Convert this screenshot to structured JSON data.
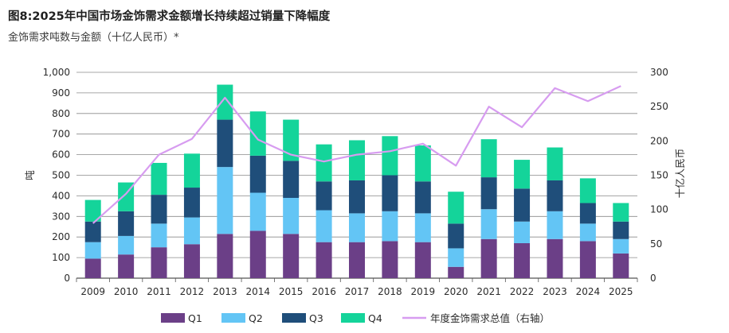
{
  "title": "图8:2025年中国市场金饰需求金额增长持续超过销量下降幅度",
  "subtitle": "金饰需求吨数与金额（十亿人民币）*",
  "chart_data": {
    "type": "bar",
    "stacked": true,
    "categories": [
      "2009",
      "2010",
      "2011",
      "2012",
      "2013",
      "2014",
      "2015",
      "2016",
      "2017",
      "2018",
      "2019",
      "2020",
      "2021",
      "2022",
      "2023",
      "2024",
      "2025"
    ],
    "series": [
      {
        "name": "Q1",
        "color": "#6b3f87",
        "values": [
          95,
          115,
          150,
          165,
          215,
          230,
          215,
          175,
          175,
          180,
          175,
          55,
          190,
          170,
          190,
          180,
          120
        ]
      },
      {
        "name": "Q2",
        "color": "#63c5f5",
        "values": [
          80,
          90,
          115,
          130,
          325,
          185,
          175,
          155,
          140,
          145,
          140,
          90,
          145,
          105,
          135,
          85,
          70
        ]
      },
      {
        "name": "Q3",
        "color": "#1f4e7a",
        "values": [
          100,
          120,
          140,
          145,
          230,
          180,
          180,
          140,
          160,
          175,
          155,
          120,
          155,
          160,
          150,
          100,
          85
        ]
      },
      {
        "name": "Q4",
        "color": "#14d49a",
        "values": [
          105,
          140,
          155,
          165,
          170,
          215,
          200,
          180,
          195,
          190,
          175,
          155,
          185,
          140,
          160,
          120,
          90
        ]
      }
    ],
    "line": {
      "name": "年度金饰需求总值（右轴）",
      "color": "#d79cf0",
      "axis": "right",
      "values": [
        80,
        123,
        180,
        203,
        263,
        202,
        180,
        170,
        180,
        185,
        196,
        164,
        250,
        220,
        277,
        258,
        280
      ]
    },
    "ylabel": "吨",
    "y2label": "十亿人民币",
    "ylim": [
      0,
      1000
    ],
    "yticks": [
      "0",
      "100",
      "200",
      "300",
      "400",
      "500",
      "600",
      "700",
      "800",
      "900",
      "1,000"
    ],
    "y2lim": [
      0,
      300
    ],
    "y2ticks": [
      "0",
      "50",
      "100",
      "150",
      "200",
      "250",
      "300"
    ],
    "grid": true,
    "legend": "bottom"
  }
}
